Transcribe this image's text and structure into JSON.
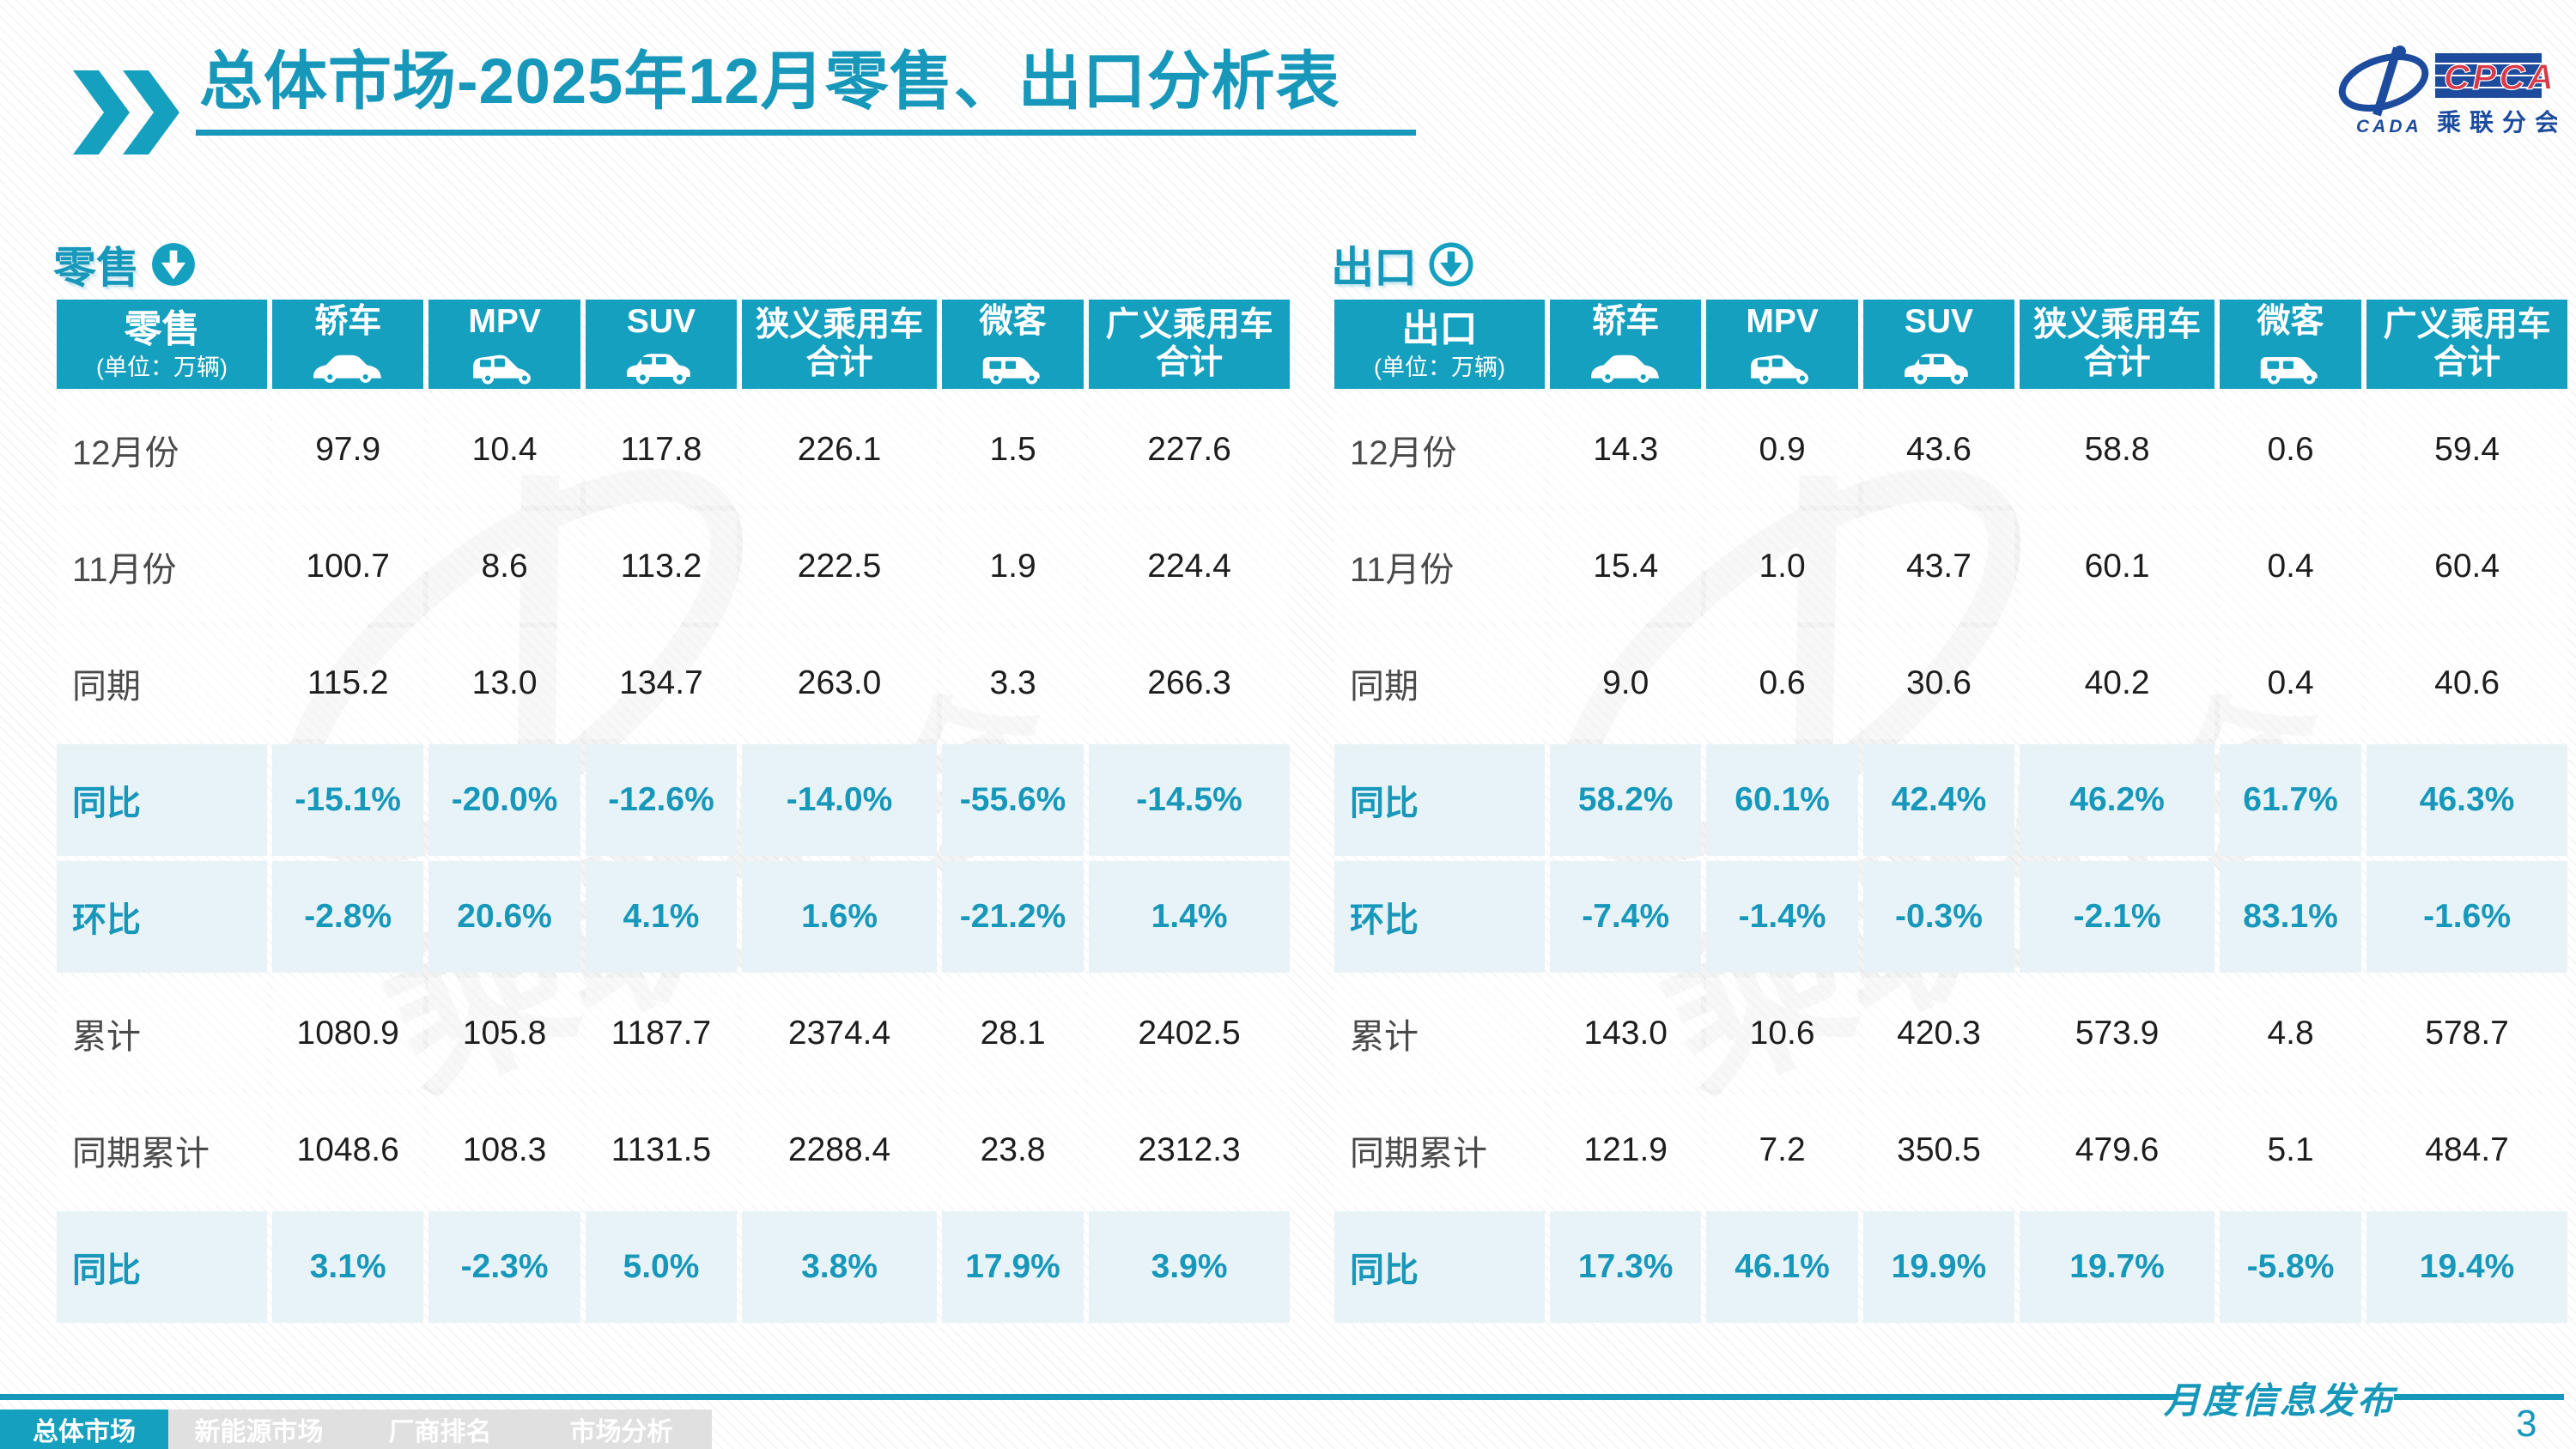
{
  "title": "总体市场-2025年12月零售、出口分析表",
  "logo": {
    "acronym": "CPCA",
    "org_small": "CADA",
    "org_name": "乘联分会"
  },
  "colors": {
    "accent_teal": "#16a0bf",
    "teal_text": "#1798ba",
    "pct_row_bg": "#e8f3f8",
    "logo_navy": "#1d4c9e",
    "logo_red": "#d93a49",
    "tab_gray": "#e0e0e0"
  },
  "tables": [
    {
      "section_title": "零售",
      "section_icon": "down-arrow-circle-icon",
      "corner_title": "零售",
      "unit_label": "(单位：万辆)",
      "columns": [
        {
          "label": "轿车",
          "icon": "sedan-icon"
        },
        {
          "label": "MPV",
          "icon": "mpv-icon"
        },
        {
          "label": "SUV",
          "icon": "suv-icon"
        },
        {
          "label": "狭义乘用车\n合计",
          "icon": null
        },
        {
          "label": "微客",
          "icon": "microvan-icon"
        },
        {
          "label": "广义乘用车\n合计",
          "icon": null
        }
      ],
      "rows": [
        {
          "label": "12月份",
          "type": "num",
          "values": [
            "97.9",
            "10.4",
            "117.8",
            "226.1",
            "1.5",
            "227.6"
          ]
        },
        {
          "label": "11月份",
          "type": "num",
          "values": [
            "100.7",
            "8.6",
            "113.2",
            "222.5",
            "1.9",
            "224.4"
          ]
        },
        {
          "label": "同期",
          "type": "num",
          "values": [
            "115.2",
            "13.0",
            "134.7",
            "263.0",
            "3.3",
            "266.3"
          ]
        },
        {
          "label": "同比",
          "type": "pct",
          "values": [
            "-15.1%",
            "-20.0%",
            "-12.6%",
            "-14.0%",
            "-55.6%",
            "-14.5%"
          ]
        },
        {
          "label": "环比",
          "type": "pct",
          "values": [
            "-2.8%",
            "20.6%",
            "4.1%",
            "1.6%",
            "-21.2%",
            "1.4%"
          ]
        },
        {
          "label": "累计",
          "type": "num",
          "values": [
            "1080.9",
            "105.8",
            "1187.7",
            "2374.4",
            "28.1",
            "2402.5"
          ]
        },
        {
          "label": "同期累计",
          "type": "num",
          "values": [
            "1048.6",
            "108.3",
            "1131.5",
            "2288.4",
            "23.8",
            "2312.3"
          ]
        },
        {
          "label": "同比",
          "type": "pct",
          "values": [
            "3.1%",
            "-2.3%",
            "5.0%",
            "3.8%",
            "17.9%",
            "3.9%"
          ]
        }
      ]
    },
    {
      "section_title": "出口",
      "section_icon": "down-arrow-circle-outline-icon",
      "corner_title": "出口",
      "unit_label": "(单位：万辆)",
      "columns": [
        {
          "label": "轿车",
          "icon": "sedan-icon"
        },
        {
          "label": "MPV",
          "icon": "mpv-icon"
        },
        {
          "label": "SUV",
          "icon": "suv-icon"
        },
        {
          "label": "狭义乘用车\n合计",
          "icon": null
        },
        {
          "label": "微客",
          "icon": "microvan-icon"
        },
        {
          "label": "广义乘用车\n合计",
          "icon": null
        }
      ],
      "rows": [
        {
          "label": "12月份",
          "type": "num",
          "values": [
            "14.3",
            "0.9",
            "43.6",
            "58.8",
            "0.6",
            "59.4"
          ]
        },
        {
          "label": "11月份",
          "type": "num",
          "values": [
            "15.4",
            "1.0",
            "43.7",
            "60.1",
            "0.4",
            "60.4"
          ]
        },
        {
          "label": "同期",
          "type": "num",
          "values": [
            "9.0",
            "0.6",
            "30.6",
            "40.2",
            "0.4",
            "40.6"
          ]
        },
        {
          "label": "同比",
          "type": "pct",
          "values": [
            "58.2%",
            "60.1%",
            "42.4%",
            "46.2%",
            "61.7%",
            "46.3%"
          ]
        },
        {
          "label": "环比",
          "type": "pct",
          "values": [
            "-7.4%",
            "-1.4%",
            "-0.3%",
            "-2.1%",
            "83.1%",
            "-1.6%"
          ]
        },
        {
          "label": "累计",
          "type": "num",
          "values": [
            "143.0",
            "10.6",
            "420.3",
            "573.9",
            "4.8",
            "578.7"
          ]
        },
        {
          "label": "同期累计",
          "type": "num",
          "values": [
            "121.9",
            "7.2",
            "350.5",
            "479.6",
            "5.1",
            "484.7"
          ]
        },
        {
          "label": "同比",
          "type": "pct",
          "values": [
            "17.3%",
            "46.1%",
            "19.9%",
            "19.7%",
            "-5.8%",
            "19.4%"
          ]
        }
      ]
    }
  ],
  "footer": {
    "tabs": [
      {
        "id": "overall-market",
        "label": "总体市场",
        "active": true
      },
      {
        "id": "nev-market",
        "label": "新能源市场",
        "active": false
      },
      {
        "id": "oem-ranking",
        "label": "厂商排名",
        "active": false
      },
      {
        "id": "market-analysis",
        "label": "市场分析",
        "active": false
      }
    ],
    "publication": "月度信息发布",
    "page_number": "3"
  },
  "watermark_text": "乘联分会"
}
